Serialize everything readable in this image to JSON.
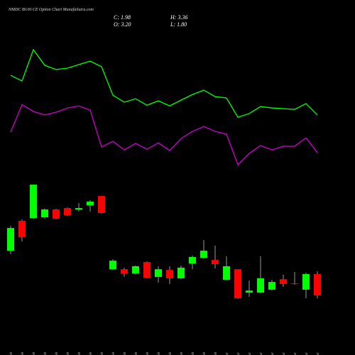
{
  "chart_data": {
    "type": "candlestick",
    "title": "NMDC 80.00 CE Option Chart MunafaSutra.com",
    "summary": {
      "close": "C: 1.98",
      "high": "H: 3.36",
      "open": "O: 3.20",
      "low": "L: 1.80"
    },
    "categories": [
      "02 Feb",
      "03 Feb",
      "04 Feb",
      "05 Feb",
      "06 Feb",
      "09 Feb",
      "10 Feb",
      "11 Feb",
      "12 Feb",
      "16 Feb",
      "17 Feb",
      "18 Feb",
      "19 Feb",
      "20 Feb",
      "23 Feb",
      "24 Feb",
      "25 Feb",
      "26 Feb",
      "27 Feb",
      "02 Mar",
      "04 Mar",
      "05 Mar",
      "06 Mar",
      "09 Mar",
      "10 Mar",
      "11 Mar",
      "12 Mar",
      "13 Mar"
    ],
    "open": [
      4.54,
      6.25,
      6.41,
      6.45,
      6.9,
      6.98,
      6.9,
      7.14,
      7.67,
      3.48,
      3.48,
      3.24,
      3.89,
      3.04,
      3.44,
      2.96,
      3.81,
      4.13,
      4.01,
      2.87,
      3.48,
      2.14,
      2.14,
      2.31,
      2.91,
      2.67,
      2.31,
      3.2
    ],
    "high": [
      5.96,
      6.33,
      8.32,
      6.94,
      6.94,
      7.02,
      7.26,
      7.43,
      7.67,
      4.05,
      3.57,
      3.69,
      3.93,
      3.65,
      3.65,
      3.69,
      4.26,
      5.15,
      4.83,
      4.22,
      3.48,
      2.83,
      4.22,
      2.87,
      3.16,
      3.32,
      3.28,
      3.36
    ],
    "low": [
      4.34,
      5.07,
      6.37,
      6.37,
      6.33,
      6.53,
      6.78,
      6.78,
      6.65,
      3.44,
      3.04,
      3.2,
      2.96,
      2.71,
      2.63,
      2.91,
      3.48,
      4.09,
      3.52,
      2.83,
      1.78,
      1.9,
      2.1,
      2.26,
      2.47,
      2.59,
      1.82,
      1.8
    ],
    "close": [
      5.84,
      5.31,
      8.32,
      6.9,
      6.37,
      6.57,
      6.98,
      7.35,
      6.7,
      3.97,
      3.24,
      3.65,
      3.0,
      3.48,
      2.96,
      3.57,
      4.18,
      4.54,
      3.77,
      3.65,
      1.82,
      2.26,
      2.96,
      2.75,
      2.63,
      2.63,
      3.2,
      1.98
    ],
    "up_color": "#00ff00",
    "down_color": "#ff0000",
    "lines": [
      {
        "color": "#00ff00",
        "values": [
          14.58,
          14.26,
          16.05,
          15.15,
          14.91,
          14.99,
          15.19,
          15.39,
          15.07,
          13.44,
          13.04,
          13.24,
          12.87,
          13.12,
          12.83,
          13.16,
          13.48,
          13.73,
          13.36,
          13.28,
          12.18,
          12.39,
          12.79,
          12.71,
          12.67,
          12.63,
          12.96,
          12.31
        ]
      },
      {
        "color": "#cc00cc",
        "values": [
          11.33,
          12.91,
          12.51,
          12.31,
          12.47,
          12.71,
          12.83,
          12.59,
          10.48,
          10.8,
          10.31,
          10.68,
          10.35,
          10.72,
          10.27,
          10.96,
          11.37,
          11.65,
          11.37,
          11.21,
          9.46,
          10.11,
          10.56,
          10.31,
          10.52,
          10.52,
          11.0,
          10.15
        ]
      }
    ],
    "ylim": [
      -1.43,
      18.89
    ]
  }
}
